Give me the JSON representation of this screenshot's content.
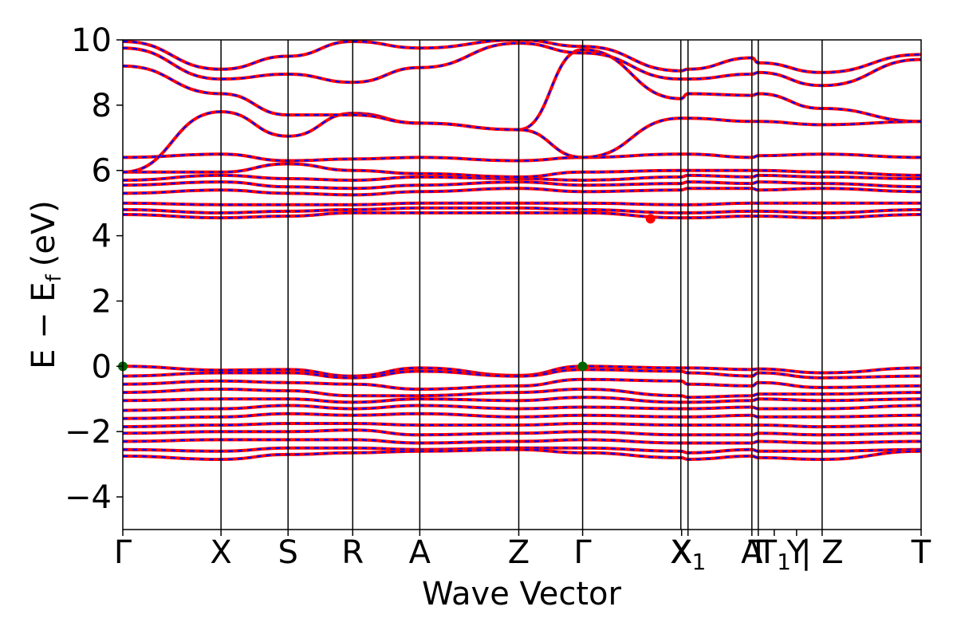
{
  "chart_data": {
    "type": "line",
    "title": "",
    "xlabel": "Wave Vector",
    "ylabel_main": "E − E",
    "ylabel_sub": "f",
    "ylabel_unit": "(eV)",
    "ylim": [
      -5,
      10
    ],
    "yticks": [
      {
        "value": 10,
        "label": "10"
      },
      {
        "value": 8,
        "label": "8"
      },
      {
        "value": 6,
        "label": "6"
      },
      {
        "value": 4,
        "label": "4"
      },
      {
        "value": 2,
        "label": "2"
      },
      {
        "value": 0,
        "label": "0"
      },
      {
        "value": -2,
        "label": "−2"
      },
      {
        "value": -4,
        "label": "−4"
      }
    ],
    "kpath_end": 10.0,
    "kpoints": [
      {
        "x": 0.0,
        "label": "Γ",
        "sub": ""
      },
      {
        "x": 1.23,
        "label": "X",
        "sub": ""
      },
      {
        "x": 2.07,
        "label": "S",
        "sub": ""
      },
      {
        "x": 2.88,
        "label": "R",
        "sub": ""
      },
      {
        "x": 3.72,
        "label": "A",
        "sub": ""
      },
      {
        "x": 4.96,
        "label": "Z",
        "sub": ""
      },
      {
        "x": 5.76,
        "label": "Γ",
        "sub": ""
      },
      {
        "x": 7.0,
        "label": "X",
        "sub": ""
      },
      {
        "x": 7.08,
        "label": "X",
        "sub": "1"
      },
      {
        "x": 7.88,
        "label": "A",
        "sub": ""
      },
      {
        "x": 7.96,
        "label": "T",
        "sub": ""
      },
      {
        "x": 8.16,
        "label": "T",
        "sub": "1"
      },
      {
        "x": 8.44,
        "label": "Y",
        "sub": ""
      },
      {
        "x": 8.76,
        "label": "| Z",
        "sub": ""
      },
      {
        "x": 10.0,
        "label": "T",
        "sub": ""
      }
    ],
    "vlines": [
      1.23,
      2.07,
      2.88,
      3.72,
      4.96,
      5.76,
      6.99,
      7.08,
      7.88,
      7.96,
      8.76
    ],
    "series": [
      {
        "style": "solid",
        "color": "#ff0000"
      },
      {
        "style": "dashed",
        "color": "#0000ff"
      }
    ],
    "markers": [
      {
        "x": 0.0,
        "y": 0.0,
        "color": "#006400"
      },
      {
        "x": 5.76,
        "y": 0.0,
        "color": "#006400"
      },
      {
        "x": 6.61,
        "y": 4.52,
        "color": "#ff0000"
      }
    ],
    "bands": [
      {
        "k": [
          0,
          1.23,
          2.07,
          2.88,
          3.72,
          4.96,
          5.76,
          6.99,
          7.08,
          7.88,
          7.96,
          8.76,
          10.0
        ],
        "y": [
          0.0,
          -0.12,
          -0.1,
          -0.3,
          -0.05,
          -0.28,
          0.0,
          -0.05,
          -0.05,
          -0.1,
          -0.08,
          -0.2,
          -0.05
        ]
      },
      {
        "k": [
          0,
          1.23,
          2.07,
          2.88,
          3.72,
          4.96,
          5.76,
          6.99,
          7.08,
          7.88,
          7.96,
          8.76,
          10.0
        ],
        "y": [
          -0.3,
          -0.2,
          -0.2,
          -0.35,
          -0.15,
          -0.3,
          -0.1,
          -0.15,
          -0.2,
          -0.3,
          -0.2,
          -0.35,
          -0.3
        ]
      },
      {
        "k": [
          0,
          1.23,
          2.07,
          2.88,
          3.72,
          4.96,
          5.76,
          6.99,
          7.08,
          7.88,
          7.96,
          8.76,
          10.0
        ],
        "y": [
          -0.55,
          -0.45,
          -0.5,
          -0.55,
          -0.7,
          -0.6,
          -0.4,
          -0.45,
          -0.55,
          -0.6,
          -0.5,
          -0.65,
          -0.6
        ]
      },
      {
        "k": [
          0,
          1.23,
          2.07,
          2.88,
          3.72,
          4.96,
          5.76,
          6.99,
          7.08,
          7.88,
          7.96,
          8.76,
          10.0
        ],
        "y": [
          -0.8,
          -0.7,
          -0.75,
          -0.9,
          -0.9,
          -0.8,
          -0.7,
          -0.9,
          -0.95,
          -0.9,
          -0.85,
          -0.85,
          -0.8
        ]
      },
      {
        "k": [
          0,
          1.23,
          2.07,
          2.88,
          3.72,
          4.96,
          5.76,
          6.99,
          7.08,
          7.88,
          7.96,
          8.76,
          10.0
        ],
        "y": [
          -1.05,
          -1.0,
          -1.0,
          -1.1,
          -1.0,
          -1.05,
          -0.95,
          -1.1,
          -1.1,
          -1.05,
          -1.0,
          -1.05,
          -1.0
        ]
      },
      {
        "k": [
          0,
          1.23,
          2.07,
          2.88,
          3.72,
          4.96,
          5.76,
          6.99,
          7.08,
          7.88,
          7.96,
          8.76,
          10.0
        ],
        "y": [
          -1.35,
          -1.3,
          -1.2,
          -1.3,
          -1.2,
          -1.3,
          -1.25,
          -1.3,
          -1.3,
          -1.25,
          -1.3,
          -1.3,
          -1.2
        ]
      },
      {
        "k": [
          0,
          1.23,
          2.07,
          2.88,
          3.72,
          4.96,
          5.76,
          6.99,
          7.08,
          7.88,
          7.96,
          8.76,
          10.0
        ],
        "y": [
          -1.6,
          -1.55,
          -1.45,
          -1.5,
          -1.45,
          -1.55,
          -1.5,
          -1.55,
          -1.55,
          -1.5,
          -1.55,
          -1.55,
          -1.5
        ]
      },
      {
        "k": [
          0,
          1.23,
          2.07,
          2.88,
          3.72,
          4.96,
          5.76,
          6.99,
          7.08,
          7.88,
          7.96,
          8.76,
          10.0
        ],
        "y": [
          -1.85,
          -1.8,
          -1.75,
          -1.75,
          -1.8,
          -1.8,
          -1.75,
          -1.8,
          -1.8,
          -1.8,
          -1.8,
          -1.85,
          -1.8
        ]
      },
      {
        "k": [
          0,
          1.23,
          2.07,
          2.88,
          3.72,
          4.96,
          5.76,
          6.99,
          7.08,
          7.88,
          7.96,
          8.76,
          10.0
        ],
        "y": [
          -2.05,
          -2.0,
          -2.0,
          -1.95,
          -2.1,
          -2.05,
          -2.0,
          -2.1,
          -2.1,
          -2.1,
          -2.05,
          -2.1,
          -2.05
        ]
      },
      {
        "k": [
          0,
          1.23,
          2.07,
          2.88,
          3.72,
          4.96,
          5.76,
          6.99,
          7.08,
          7.88,
          7.96,
          8.76,
          10.0
        ],
        "y": [
          -2.3,
          -2.25,
          -2.25,
          -2.25,
          -2.35,
          -2.3,
          -2.25,
          -2.35,
          -2.35,
          -2.35,
          -2.3,
          -2.35,
          -2.3
        ]
      },
      {
        "k": [
          0,
          1.23,
          2.07,
          2.88,
          3.72,
          4.96,
          5.76,
          6.99,
          7.08,
          7.88,
          7.96,
          8.76,
          10.0
        ],
        "y": [
          -2.55,
          -2.6,
          -2.5,
          -2.5,
          -2.55,
          -2.5,
          -2.5,
          -2.6,
          -2.65,
          -2.55,
          -2.6,
          -2.6,
          -2.55
        ]
      },
      {
        "k": [
          0,
          1.23,
          2.07,
          2.88,
          3.72,
          4.96,
          5.76,
          6.99,
          7.08,
          7.88,
          7.96,
          8.76,
          10.0
        ],
        "y": [
          -2.75,
          -2.85,
          -2.7,
          -2.65,
          -2.6,
          -2.55,
          -2.65,
          -2.8,
          -2.85,
          -2.75,
          -2.8,
          -2.85,
          -2.6
        ]
      },
      {
        "k": [
          0,
          1.23,
          2.07,
          2.88,
          3.72,
          4.96,
          5.76,
          6.99,
          7.08,
          7.88,
          7.96,
          8.76,
          10.0
        ],
        "y": [
          4.65,
          4.55,
          4.6,
          4.7,
          4.7,
          4.7,
          4.7,
          4.55,
          4.55,
          4.6,
          4.6,
          4.55,
          4.65
        ]
      },
      {
        "k": [
          0,
          1.23,
          2.07,
          2.88,
          3.72,
          4.96,
          5.76,
          6.99,
          7.08,
          7.88,
          7.96,
          8.76,
          10.0
        ],
        "y": [
          4.8,
          4.7,
          4.75,
          4.8,
          4.85,
          4.85,
          4.8,
          4.7,
          4.7,
          4.75,
          4.75,
          4.7,
          4.8
        ]
      },
      {
        "k": [
          0,
          1.23,
          2.07,
          2.88,
          3.72,
          4.96,
          5.76,
          6.99,
          7.08,
          7.88,
          7.96,
          8.76,
          10.0
        ],
        "y": [
          5.0,
          4.95,
          4.95,
          4.95,
          5.0,
          5.0,
          5.0,
          4.95,
          4.95,
          5.0,
          5.0,
          5.0,
          5.0
        ]
      },
      {
        "k": [
          0,
          1.23,
          2.07,
          2.88,
          3.72,
          4.96,
          5.76,
          6.99,
          7.08,
          7.88,
          7.96,
          8.76,
          10.0
        ],
        "y": [
          5.3,
          5.4,
          5.3,
          5.25,
          5.35,
          5.45,
          5.35,
          5.4,
          5.45,
          5.45,
          5.4,
          5.45,
          5.35
        ]
      },
      {
        "k": [
          0,
          1.23,
          2.07,
          2.88,
          3.72,
          4.96,
          5.76,
          6.99,
          7.08,
          7.88,
          7.96,
          8.76,
          10.0
        ],
        "y": [
          5.55,
          5.65,
          5.5,
          5.45,
          5.55,
          5.65,
          5.55,
          5.6,
          5.65,
          5.6,
          5.65,
          5.6,
          5.5
        ]
      },
      {
        "k": [
          0,
          1.23,
          2.07,
          2.88,
          3.72,
          4.96,
          5.76,
          6.99,
          7.08,
          7.88,
          7.96,
          8.76,
          10.0
        ],
        "y": [
          5.7,
          5.85,
          5.75,
          5.7,
          5.8,
          5.75,
          5.7,
          5.8,
          5.85,
          5.8,
          5.85,
          5.8,
          5.75
        ]
      },
      {
        "k": [
          0,
          1.23,
          2.07,
          2.88,
          3.72,
          4.96,
          5.76,
          6.99,
          7.08,
          7.88,
          7.96,
          8.76,
          10.0
        ],
        "y": [
          5.95,
          5.95,
          6.2,
          6.0,
          5.9,
          5.8,
          5.95,
          6.0,
          6.0,
          6.0,
          6.0,
          5.95,
          5.85
        ]
      },
      {
        "k": [
          0,
          1.23,
          2.07,
          2.88,
          3.72,
          4.96,
          5.76,
          6.99,
          7.08,
          7.88,
          7.96,
          8.76,
          10.0
        ],
        "y": [
          6.4,
          6.5,
          6.3,
          6.35,
          6.4,
          6.3,
          6.4,
          6.5,
          6.5,
          6.4,
          6.45,
          6.5,
          6.4
        ]
      },
      {
        "k": [
          0,
          1.23,
          2.07,
          2.88,
          3.72,
          4.96,
          5.76,
          6.99,
          7.08,
          7.88,
          7.96,
          8.76,
          10.0
        ],
        "y": [
          5.95,
          7.8,
          7.05,
          7.75,
          7.45,
          7.25,
          9.7,
          8.2,
          8.35,
          8.3,
          8.35,
          7.9,
          7.5
        ]
      },
      {
        "k": [
          0,
          1.23,
          2.07,
          2.88,
          3.72,
          4.96,
          5.76,
          6.99,
          7.08,
          7.88,
          7.96,
          8.76,
          10.0
        ],
        "y": [
          9.2,
          8.35,
          7.7,
          7.7,
          7.45,
          7.25,
          6.4,
          7.6,
          7.6,
          7.5,
          7.5,
          7.4,
          7.5
        ]
      },
      {
        "k": [
          0,
          1.23,
          2.07,
          2.88,
          3.72,
          4.96,
          5.76,
          6.99,
          7.08,
          7.88,
          7.96,
          8.76,
          10.0
        ],
        "y": [
          9.75,
          8.8,
          8.95,
          8.7,
          9.15,
          9.9,
          9.6,
          8.8,
          8.8,
          8.95,
          9.0,
          8.6,
          9.4
        ]
      },
      {
        "k": [
          0,
          1.23,
          2.07,
          2.88,
          3.72,
          4.96,
          5.76,
          6.99,
          7.08,
          7.88,
          7.96,
          8.76,
          10.0
        ],
        "y": [
          9.95,
          9.1,
          9.5,
          9.95,
          9.75,
          10.0,
          9.8,
          9.05,
          9.1,
          9.45,
          9.3,
          9.0,
          9.55
        ]
      }
    ]
  }
}
